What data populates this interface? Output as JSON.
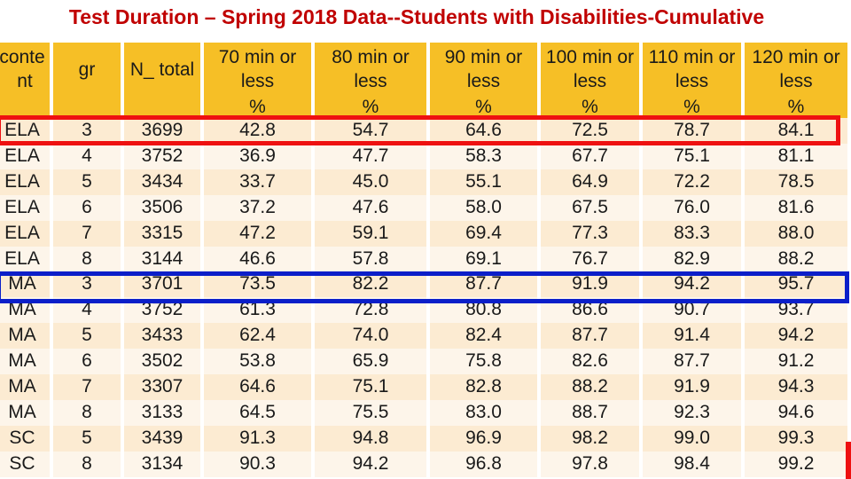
{
  "title": "Test Duration – Spring 2018 Data--Students with Disabilities-Cumulative",
  "headers": [
    "conte nt",
    "gr",
    "N_ total",
    "70 min or less",
    "80 min or less",
    "90 min or less",
    "100 min or less",
    "110 min or less",
    "120 min or less"
  ],
  "units": [
    "",
    "",
    "",
    "%",
    "%",
    "%",
    "%",
    "%",
    "%"
  ],
  "rows": [
    [
      "ELA",
      "3",
      "3699",
      "42.8",
      "54.7",
      "64.6",
      "72.5",
      "78.7",
      "84.1"
    ],
    [
      "ELA",
      "4",
      "3752",
      "36.9",
      "47.7",
      "58.3",
      "67.7",
      "75.1",
      "81.1"
    ],
    [
      "ELA",
      "5",
      "3434",
      "33.7",
      "45.0",
      "55.1",
      "64.9",
      "72.2",
      "78.5"
    ],
    [
      "ELA",
      "6",
      "3506",
      "37.2",
      "47.6",
      "58.0",
      "67.5",
      "76.0",
      "81.6"
    ],
    [
      "ELA",
      "7",
      "3315",
      "47.2",
      "59.1",
      "69.4",
      "77.3",
      "83.3",
      "88.0"
    ],
    [
      "ELA",
      "8",
      "3144",
      "46.6",
      "57.8",
      "69.1",
      "76.7",
      "82.9",
      "88.2"
    ],
    [
      "MA",
      "3",
      "3701",
      "73.5",
      "82.2",
      "87.7",
      "91.9",
      "94.2",
      "95.7"
    ],
    [
      "MA",
      "4",
      "3752",
      "61.3",
      "72.8",
      "80.8",
      "86.6",
      "90.7",
      "93.7"
    ],
    [
      "MA",
      "5",
      "3433",
      "62.4",
      "74.0",
      "82.4",
      "87.7",
      "91.4",
      "94.2"
    ],
    [
      "MA",
      "6",
      "3502",
      "53.8",
      "65.9",
      "75.8",
      "82.6",
      "87.7",
      "91.2"
    ],
    [
      "MA",
      "7",
      "3307",
      "64.6",
      "75.1",
      "82.8",
      "88.2",
      "91.9",
      "94.3"
    ],
    [
      "MA",
      "8",
      "3133",
      "64.5",
      "75.5",
      "83.0",
      "88.7",
      "92.3",
      "94.6"
    ],
    [
      "SC",
      "5",
      "3439",
      "91.3",
      "94.8",
      "96.9",
      "98.2",
      "99.0",
      "99.3"
    ],
    [
      "SC",
      "8",
      "3134",
      "90.3",
      "94.2",
      "96.8",
      "97.8",
      "98.4",
      "99.2"
    ]
  ],
  "colors": {
    "title": "#c00000",
    "header_bg": "#f6bf26",
    "row_odd": "#fcebd2",
    "row_even": "#fdf5ea",
    "highlight_ela_grade3": "#ee1111",
    "highlight_ma_grade3": "#0b1fc9"
  }
}
